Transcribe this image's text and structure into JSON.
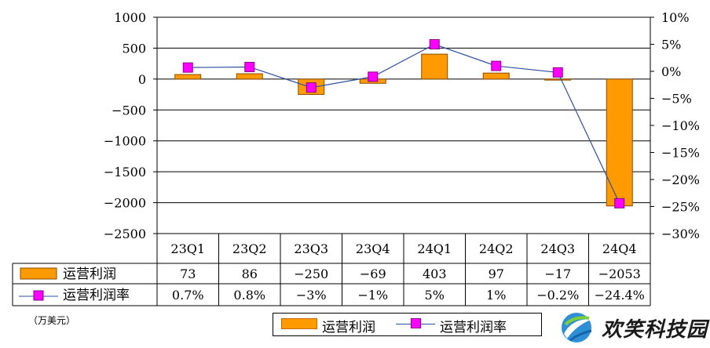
{
  "chart_data": {
    "type": "bar+line",
    "categories": [
      "23Q1",
      "23Q2",
      "23Q3",
      "23Q4",
      "24Q1",
      "24Q2",
      "24Q3",
      "24Q4"
    ],
    "series": [
      {
        "name": "运营利润",
        "type": "bar",
        "axis": "left",
        "values": [
          73,
          86,
          -250,
          -69,
          403,
          97,
          -17,
          -2053
        ],
        "table_labels": [
          "73",
          "86",
          "−250",
          "−69",
          "403",
          "97",
          "−17",
          "−2053"
        ],
        "color": "#ff9a00"
      },
      {
        "name": "运营利润率",
        "type": "line",
        "axis": "right",
        "values": [
          0.7,
          0.8,
          -3,
          -1,
          5,
          1,
          -0.2,
          -24.4
        ],
        "table_labels": [
          "0.7%",
          "0.8%",
          "−3%",
          "−1%",
          "5%",
          "1%",
          "−0.2%",
          "−24.4%"
        ],
        "line_color": "#3050a0",
        "marker_color": "#ff00ff"
      }
    ],
    "y_left": {
      "range": [
        -2500,
        1000
      ],
      "ticks": [
        1000,
        500,
        0,
        -500,
        -1000,
        -1500,
        -2000,
        -2500
      ],
      "tick_labels": [
        "1000",
        "500",
        "0",
        "−500",
        "−1000",
        "−1500",
        "−2000",
        "−2500"
      ]
    },
    "y_right": {
      "range": [
        -30,
        10
      ],
      "ticks": [
        10,
        5,
        0,
        -5,
        -10,
        -15,
        -20,
        -25,
        -30
      ],
      "tick_labels": [
        "10%",
        "5%",
        "0%",
        "−5%",
        "−10%",
        "−15%",
        "−20%",
        "−25%",
        "−30%"
      ]
    },
    "grid": true,
    "data_table": true,
    "legend_position": "bottom",
    "unit_note": "（万美元）"
  },
  "brand": {
    "text": "欢笑科技园",
    "logo_icon": "globe-swoosh-logo"
  }
}
